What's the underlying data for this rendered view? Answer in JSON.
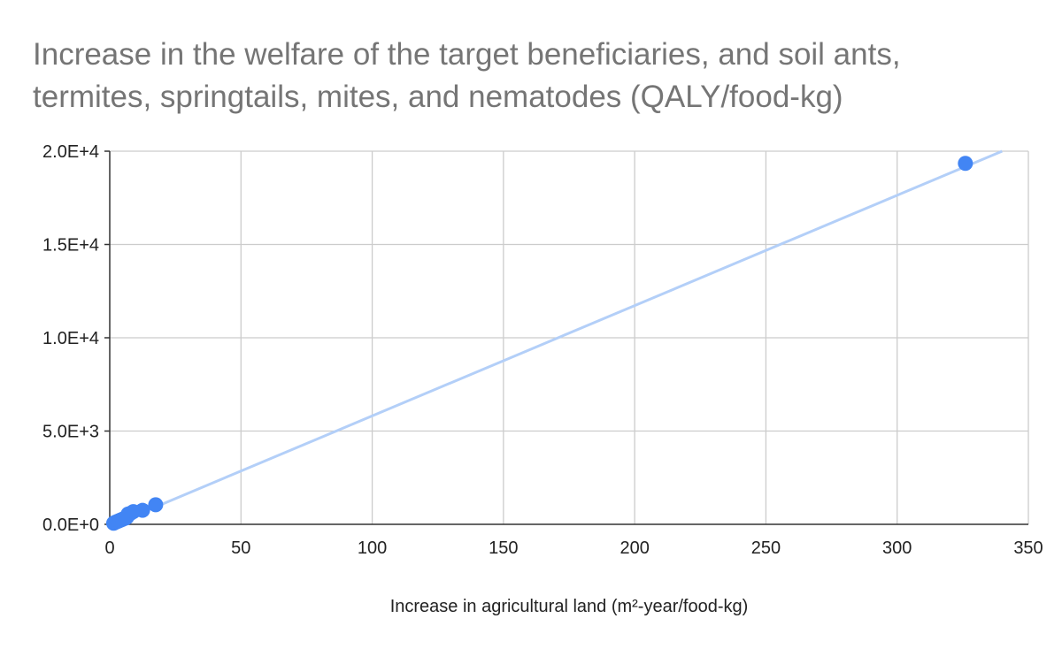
{
  "chart_data": {
    "type": "scatter",
    "title_lines": [
      "Increase in the welfare of the target beneficiaries, and soil ants,",
      "termites, springtails, mites, and nematodes (QALY/food-kg)"
    ],
    "xlabel": "Increase in agricultural land (m²-year/food-kg)",
    "ylabel": "",
    "xlim": [
      0,
      350
    ],
    "ylim": [
      0,
      20000
    ],
    "x_ticks": [
      0,
      50,
      100,
      150,
      200,
      250,
      300,
      350
    ],
    "x_tick_labels": [
      "0",
      "50",
      "100",
      "150",
      "200",
      "250",
      "300",
      "350"
    ],
    "y_ticks": [
      0,
      5000,
      10000,
      15000,
      20000
    ],
    "y_tick_labels": [
      "0.0E+0",
      "5.0E+3",
      "1.0E+4",
      "1.5E+4",
      "2.0E+4"
    ],
    "grid": true,
    "point_color": "#4285f4",
    "trendline_color": "#b3cff8",
    "trendline": {
      "type": "linear",
      "x": [
        0,
        340
      ],
      "y": [
        -100,
        20000
      ]
    },
    "points": [
      {
        "x": 1.5,
        "y": 60
      },
      {
        "x": 2.0,
        "y": 100
      },
      {
        "x": 2.5,
        "y": 130
      },
      {
        "x": 3.0,
        "y": 160
      },
      {
        "x": 3.5,
        "y": 190
      },
      {
        "x": 4.0,
        "y": 220
      },
      {
        "x": 4.5,
        "y": 250
      },
      {
        "x": 5.0,
        "y": 280
      },
      {
        "x": 5.5,
        "y": 310
      },
      {
        "x": 6.0,
        "y": 330
      },
      {
        "x": 6.5,
        "y": 380
      },
      {
        "x": 7.0,
        "y": 550
      },
      {
        "x": 8.0,
        "y": 600
      },
      {
        "x": 9.0,
        "y": 680
      },
      {
        "x": 12.5,
        "y": 750
      },
      {
        "x": 17.5,
        "y": 1050
      },
      {
        "x": 326.0,
        "y": 19350
      }
    ]
  }
}
